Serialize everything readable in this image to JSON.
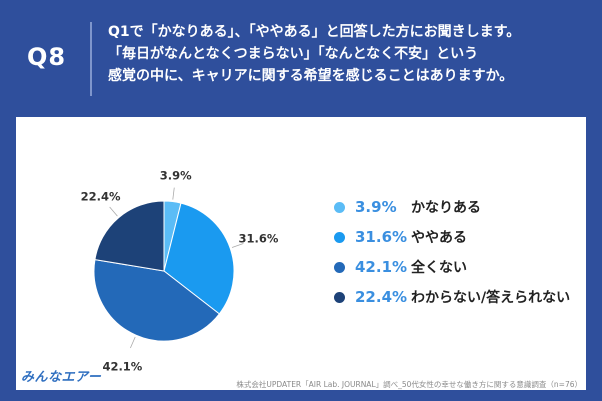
{
  "header": {
    "badge": "Q8",
    "question_lines": [
      "Q1で「かなりある」、「ややある」と回答した方にお聞きします。",
      "「毎日がなんとなくつまらない」「なんとなく不安」という",
      "感覚の中に、キャリアに関する希望を感じることはありますか。"
    ]
  },
  "chart_data": {
    "type": "pie",
    "start": "top",
    "direction": "clockwise",
    "slices": [
      {
        "label": "かなりある",
        "value": 3.9,
        "display": "3.9%",
        "color": "#5bbcf6"
      },
      {
        "label": "ややある",
        "value": 31.6,
        "display": "31.6%",
        "color": "#1a9af0"
      },
      {
        "label": "全くない",
        "value": 42.1,
        "display": "42.1%",
        "color": "#2369b8"
      },
      {
        "label": "わからない/答えられない",
        "value": 22.4,
        "display": "22.4%",
        "color": "#1d4278"
      }
    ]
  },
  "legend": {
    "pct_color": "#3a8fe0"
  },
  "footer": {
    "logo": "みんなエアー",
    "source": "株式会社UPDATER「AIR Lab. JOURNAL」調べ_50代女性の幸せな働き方に関する意識調査（n=76）"
  }
}
